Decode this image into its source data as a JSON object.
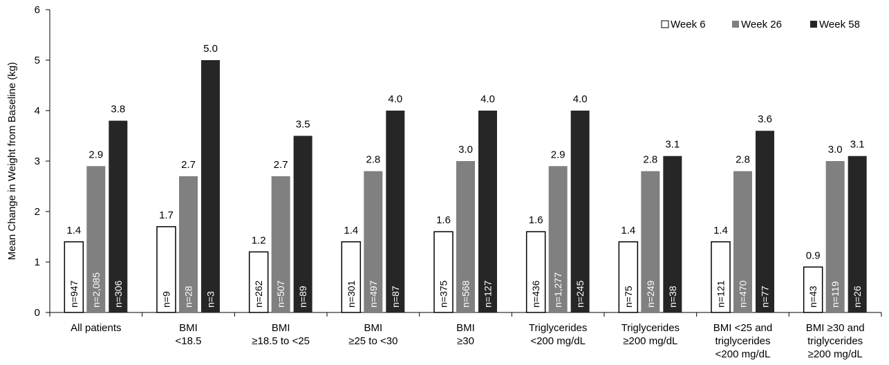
{
  "chart_data": {
    "type": "bar",
    "ylabel": "Mean Change in Weight from Baseline (kg)",
    "ylim": [
      0,
      6
    ],
    "yticks": [
      0,
      1,
      2,
      3,
      4,
      5,
      6
    ],
    "grid": false,
    "legend_position": "top-right",
    "categories": [
      [
        "All patients"
      ],
      [
        "BMI",
        "<18.5"
      ],
      [
        "BMI",
        "≥18.5 to <25"
      ],
      [
        "BMI",
        "≥25 to <30"
      ],
      [
        "BMI",
        "≥30"
      ],
      [
        "Triglycerides",
        "<200 mg/dL"
      ],
      [
        "Triglycerides",
        "≥200 mg/dL"
      ],
      [
        "BMI <25 and",
        "triglycerides",
        "<200 mg/dL"
      ],
      [
        "BMI ≥30 and",
        "triglycerides",
        "≥200 mg/dL"
      ]
    ],
    "series": [
      {
        "name": "Week 6",
        "color": "#ffffff",
        "values": [
          1.4,
          1.7,
          1.2,
          1.4,
          1.6,
          1.6,
          1.4,
          1.4,
          0.9
        ],
        "value_labels": [
          "1.4",
          "1.7",
          "1.2",
          "1.4",
          "1.6",
          "1.6",
          "1.4",
          "1.4",
          "0.9"
        ],
        "n": [
          "n=947",
          "n=9",
          "n=262",
          "n=301",
          "n=375",
          "n=436",
          "n=75",
          "n=121",
          "n=43"
        ]
      },
      {
        "name": "Week 26",
        "color": "#808080",
        "values": [
          2.9,
          2.7,
          2.7,
          2.8,
          3.0,
          2.9,
          2.8,
          2.8,
          3.0
        ],
        "value_labels": [
          "2.9",
          "2.7",
          "2.7",
          "2.8",
          "3.0",
          "2.9",
          "2.8",
          "2.8",
          "3.0"
        ],
        "n": [
          "n=2,085",
          "n=28",
          "n=507",
          "n=497",
          "n=568",
          "n=1,277",
          "n=249",
          "n=470",
          "n=119"
        ]
      },
      {
        "name": "Week 58",
        "color": "#262626",
        "values": [
          3.8,
          5.0,
          3.5,
          4.0,
          4.0,
          4.0,
          3.1,
          3.6,
          3.1
        ],
        "value_labels": [
          "3.8",
          "5.0",
          "3.5",
          "4.0",
          "4.0",
          "4.0",
          "3.1",
          "3.6",
          "3.1"
        ],
        "n": [
          "n=306",
          "n=3",
          "n=89",
          "n=87",
          "n=127",
          "n=245",
          "n=38",
          "n=77",
          "n=26"
        ]
      }
    ]
  }
}
